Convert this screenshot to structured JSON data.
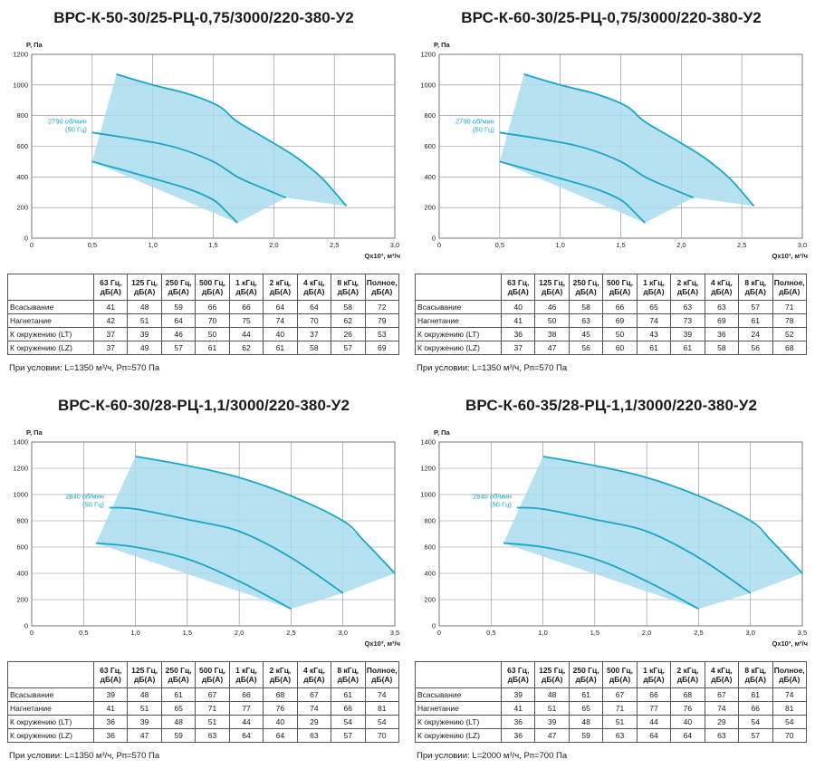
{
  "chart_data": [
    {
      "type": "line",
      "title": "ВРС-К-50-30/25-РЦ-0,75/3000/220-380-У2",
      "ylabel": "Р, Па",
      "xlabel": "Qx10³, м³/ч",
      "xlim": [
        0,
        3.0
      ],
      "ylim": [
        0,
        1200
      ],
      "xticks": [
        "0",
        "0,5",
        "1,0",
        "1,5",
        "2,0",
        "2,5",
        "3,0"
      ],
      "yticks": [
        "0",
        "200",
        "400",
        "600",
        "800",
        "1000",
        "1200"
      ],
      "grid": true,
      "annotation": [
        "2790 об/мин",
        "(50 Гц)"
      ],
      "accent_color": "#1aa7c4",
      "fill_color": "#a8dcee",
      "envelope": [
        [
          0.5,
          500
        ],
        [
          0.7,
          1070
        ],
        [
          1.0,
          1000
        ],
        [
          1.3,
          940
        ],
        [
          1.55,
          860
        ],
        [
          1.7,
          760
        ],
        [
          2.0,
          620
        ],
        [
          2.2,
          520
        ],
        [
          2.4,
          390
        ],
        [
          2.6,
          210
        ],
        [
          2.1,
          265
        ],
        [
          1.7,
          100
        ]
      ],
      "series": [
        {
          "values": [
            [
              0.7,
              1070
            ],
            [
              1.0,
              1000
            ],
            [
              1.3,
              940
            ],
            [
              1.55,
              860
            ],
            [
              1.7,
              760
            ],
            [
              2.0,
              620
            ],
            [
              2.2,
              520
            ],
            [
              2.4,
              390
            ],
            [
              2.6,
              210
            ]
          ]
        },
        {
          "values": [
            [
              0.5,
              690
            ],
            [
              0.9,
              640
            ],
            [
              1.2,
              590
            ],
            [
              1.5,
              500
            ],
            [
              1.7,
              400
            ],
            [
              1.9,
              330
            ],
            [
              2.1,
              265
            ]
          ]
        },
        {
          "values": [
            [
              0.5,
              500
            ],
            [
              1.0,
              390
            ],
            [
              1.3,
              320
            ],
            [
              1.5,
              250
            ],
            [
              1.6,
              180
            ],
            [
              1.7,
              100
            ]
          ]
        }
      ]
    },
    {
      "type": "line",
      "title": "ВРС-К-60-30/25-РЦ-0,75/3000/220-380-У2",
      "ylabel": "Р, Па",
      "xlabel": "Qx10³, м³/ч",
      "xlim": [
        0,
        3.0
      ],
      "ylim": [
        0,
        1200
      ],
      "xticks": [
        "0",
        "0,5",
        "1,0",
        "1,5",
        "2,0",
        "2,5",
        "3,0"
      ],
      "yticks": [
        "0",
        "200",
        "400",
        "600",
        "800",
        "1000",
        "1200"
      ],
      "grid": true,
      "annotation": [
        "2790 об/мин",
        "(50 Гц)"
      ],
      "accent_color": "#1aa7c4",
      "fill_color": "#a8dcee",
      "envelope": [
        [
          0.5,
          500
        ],
        [
          0.7,
          1070
        ],
        [
          1.0,
          1000
        ],
        [
          1.3,
          940
        ],
        [
          1.55,
          860
        ],
        [
          1.7,
          760
        ],
        [
          2.0,
          620
        ],
        [
          2.2,
          520
        ],
        [
          2.4,
          390
        ],
        [
          2.6,
          210
        ],
        [
          2.1,
          265
        ],
        [
          1.7,
          100
        ]
      ],
      "series": [
        {
          "values": [
            [
              0.7,
              1070
            ],
            [
              1.0,
              1000
            ],
            [
              1.3,
              940
            ],
            [
              1.55,
              860
            ],
            [
              1.7,
              760
            ],
            [
              2.0,
              620
            ],
            [
              2.2,
              520
            ],
            [
              2.4,
              390
            ],
            [
              2.6,
              210
            ]
          ]
        },
        {
          "values": [
            [
              0.5,
              690
            ],
            [
              0.9,
              640
            ],
            [
              1.2,
              590
            ],
            [
              1.5,
              500
            ],
            [
              1.7,
              400
            ],
            [
              1.9,
              330
            ],
            [
              2.1,
              265
            ]
          ]
        },
        {
          "values": [
            [
              0.5,
              500
            ],
            [
              1.0,
              390
            ],
            [
              1.3,
              320
            ],
            [
              1.5,
              250
            ],
            [
              1.6,
              180
            ],
            [
              1.7,
              100
            ]
          ]
        }
      ]
    },
    {
      "type": "line",
      "title": "ВРС-К-60-30/28-РЦ-1,1/3000/220-380-У2",
      "ylabel": "Р, Па",
      "xlabel": "Qx10³, м³/ч",
      "xlim": [
        0,
        3.5
      ],
      "ylim": [
        0,
        1400
      ],
      "xticks": [
        "0",
        "0,5",
        "1,0",
        "1,5",
        "2,0",
        "2,5",
        "3,0",
        "3,5"
      ],
      "yticks": [
        "0",
        "200",
        "400",
        "600",
        "800",
        "1000",
        "1200",
        "1400"
      ],
      "grid": true,
      "annotation": [
        "2840 об/мин",
        "(50 Гц)"
      ],
      "accent_color": "#1aa7c4",
      "fill_color": "#a8dcee",
      "envelope": [
        [
          0.62,
          630
        ],
        [
          1.0,
          1290
        ],
        [
          1.5,
          1220
        ],
        [
          2.0,
          1130
        ],
        [
          2.5,
          990
        ],
        [
          3.0,
          800
        ],
        [
          3.2,
          650
        ],
        [
          3.5,
          400
        ],
        [
          3.0,
          250
        ],
        [
          2.5,
          130
        ]
      ],
      "series": [
        {
          "values": [
            [
              1.0,
              1290
            ],
            [
              1.5,
              1220
            ],
            [
              2.0,
              1130
            ],
            [
              2.5,
              990
            ],
            [
              3.0,
              800
            ],
            [
              3.2,
              650
            ],
            [
              3.5,
              400
            ]
          ]
        },
        {
          "values": [
            [
              0.75,
              900
            ],
            [
              1.0,
              890
            ],
            [
              1.5,
              810
            ],
            [
              2.0,
              720
            ],
            [
              2.5,
              520
            ],
            [
              3.0,
              250
            ]
          ]
        },
        {
          "values": [
            [
              0.62,
              630
            ],
            [
              1.0,
              600
            ],
            [
              1.5,
              510
            ],
            [
              2.0,
              340
            ],
            [
              2.5,
              130
            ]
          ]
        }
      ]
    },
    {
      "type": "line",
      "title": "ВРС-К-60-35/28-РЦ-1,1/3000/220-380-У2",
      "ylabel": "Р, Па",
      "xlabel": "Qx10³, м³/ч",
      "xlim": [
        0,
        3.5
      ],
      "ylim": [
        0,
        1400
      ],
      "xticks": [
        "0",
        "0,5",
        "1,0",
        "1,5",
        "2,0",
        "2,5",
        "3,0",
        "3,5"
      ],
      "yticks": [
        "0",
        "200",
        "400",
        "600",
        "800",
        "1000",
        "1200",
        "1400"
      ],
      "grid": true,
      "annotation": [
        "2840 об/мин",
        "(50 Гц)"
      ],
      "accent_color": "#1aa7c4",
      "fill_color": "#a8dcee",
      "envelope": [
        [
          0.62,
          630
        ],
        [
          1.0,
          1290
        ],
        [
          1.5,
          1220
        ],
        [
          2.0,
          1130
        ],
        [
          2.5,
          990
        ],
        [
          3.0,
          800
        ],
        [
          3.2,
          650
        ],
        [
          3.5,
          400
        ],
        [
          3.0,
          250
        ],
        [
          2.5,
          130
        ]
      ],
      "series": [
        {
          "values": [
            [
              1.0,
              1290
            ],
            [
              1.5,
              1220
            ],
            [
              2.0,
              1130
            ],
            [
              2.5,
              990
            ],
            [
              3.0,
              800
            ],
            [
              3.2,
              650
            ],
            [
              3.5,
              400
            ]
          ]
        },
        {
          "values": [
            [
              0.75,
              900
            ],
            [
              1.0,
              890
            ],
            [
              1.5,
              810
            ],
            [
              2.0,
              720
            ],
            [
              2.5,
              520
            ],
            [
              3.0,
              250
            ]
          ]
        },
        {
          "values": [
            [
              0.62,
              630
            ],
            [
              1.0,
              600
            ],
            [
              1.5,
              510
            ],
            [
              2.0,
              340
            ],
            [
              2.5,
              130
            ]
          ]
        }
      ]
    }
  ],
  "tables": [
    {
      "header": [
        "63 Гц, дБ(А)",
        "125 Гц, дБ(А)",
        "250 Гц, дБ(А)",
        "500 Гц, дБ(А)",
        "1 кГц, дБ(А)",
        "2 кГц, дБ(А)",
        "4 кГц, дБ(А)",
        "8 кГц, дБ(А)",
        "Полное, дБ(А)"
      ],
      "rows": [
        {
          "label": "Всасывание",
          "cells": [
            "41",
            "48",
            "59",
            "66",
            "66",
            "64",
            "64",
            "58",
            "72"
          ]
        },
        {
          "label": "Нагнетание",
          "cells": [
            "42",
            "51",
            "64",
            "70",
            "75",
            "74",
            "70",
            "62",
            "79"
          ]
        },
        {
          "label": "К окружению (LT)",
          "cells": [
            "37",
            "39",
            "46",
            "50",
            "44",
            "40",
            "37",
            "26",
            "53"
          ]
        },
        {
          "label": "К окружению (LZ)",
          "cells": [
            "37",
            "49",
            "57",
            "61",
            "62",
            "61",
            "58",
            "57",
            "69"
          ]
        }
      ],
      "condition": "При условии: L=1350 м³/ч, Pп=570 Па"
    },
    {
      "header": [
        "63 Гц, дБ(А)",
        "125 Гц, дБ(А)",
        "250 Гц, дБ(А)",
        "500 Гц, дБ(А)",
        "1 кГц, дБ(А)",
        "2 кГц, дБ(А)",
        "4 кГц, дБ(А)",
        "8 кГц, дБ(А)",
        "Полное, дБ(А)"
      ],
      "rows": [
        {
          "label": "Всасывание",
          "cells": [
            "40",
            "46",
            "58",
            "66",
            "65",
            "63",
            "63",
            "57",
            "71"
          ]
        },
        {
          "label": "Нагнетание",
          "cells": [
            "41",
            "50",
            "63",
            "69",
            "74",
            "73",
            "69",
            "61",
            "78"
          ]
        },
        {
          "label": "К окружению (LT)",
          "cells": [
            "36",
            "38",
            "45",
            "50",
            "43",
            "39",
            "36",
            "24",
            "52"
          ]
        },
        {
          "label": "К окружению (LZ)",
          "cells": [
            "37",
            "47",
            "56",
            "60",
            "61",
            "61",
            "58",
            "56",
            "68"
          ]
        }
      ],
      "condition": "При условии: L=1350 м³/ч, Pп=570 Па"
    },
    {
      "header": [
        "63 Гц, дБ(А)",
        "125 Гц, дБ(А)",
        "250 Гц, дБ(А)",
        "500 Гц, дБ(А)",
        "1 кГц, дБ(А)",
        "2 кГц, дБ(А)",
        "4 кГц, дБ(А)",
        "8 кГц, дБ(А)",
        "Полное, дБ(А)"
      ],
      "rows": [
        {
          "label": "Всасывание",
          "cells": [
            "39",
            "48",
            "61",
            "67",
            "66",
            "68",
            "67",
            "61",
            "74"
          ]
        },
        {
          "label": "Нагнетание",
          "cells": [
            "41",
            "51",
            "65",
            "71",
            "77",
            "76",
            "74",
            "66",
            "81"
          ]
        },
        {
          "label": "К окружению (LT)",
          "cells": [
            "36",
            "39",
            "48",
            "51",
            "44",
            "40",
            "29",
            "54",
            "54"
          ]
        },
        {
          "label": "К окружению (LZ)",
          "cells": [
            "36",
            "47",
            "59",
            "63",
            "64",
            "64",
            "63",
            "57",
            "70"
          ]
        }
      ],
      "condition": "При условии: L=1350 м³/ч, Pп=570 Па"
    },
    {
      "header": [
        "63 Гц, дБ(А)",
        "125 Гц, дБ(А)",
        "250 Гц, дБ(А)",
        "500 Гц, дБ(А)",
        "1 кГц, дБ(А)",
        "2 кГц, дБ(А)",
        "4 кГц, дБ(А)",
        "8 кГц, дБ(А)",
        "Полное, дБ(А)"
      ],
      "rows": [
        {
          "label": "Всасывание",
          "cells": [
            "39",
            "48",
            "61",
            "67",
            "66",
            "68",
            "67",
            "61",
            "74"
          ]
        },
        {
          "label": "Нагнетание",
          "cells": [
            "41",
            "51",
            "65",
            "71",
            "77",
            "76",
            "74",
            "66",
            "81"
          ]
        },
        {
          "label": "К окружению (LT)",
          "cells": [
            "36",
            "39",
            "48",
            "51",
            "44",
            "40",
            "29",
            "54",
            "54"
          ]
        },
        {
          "label": "К окружению (LZ)",
          "cells": [
            "36",
            "47",
            "59",
            "63",
            "64",
            "64",
            "63",
            "57",
            "70"
          ]
        }
      ],
      "condition": "При условии: L=2000 м³/ч, Pп=700 Па"
    }
  ]
}
